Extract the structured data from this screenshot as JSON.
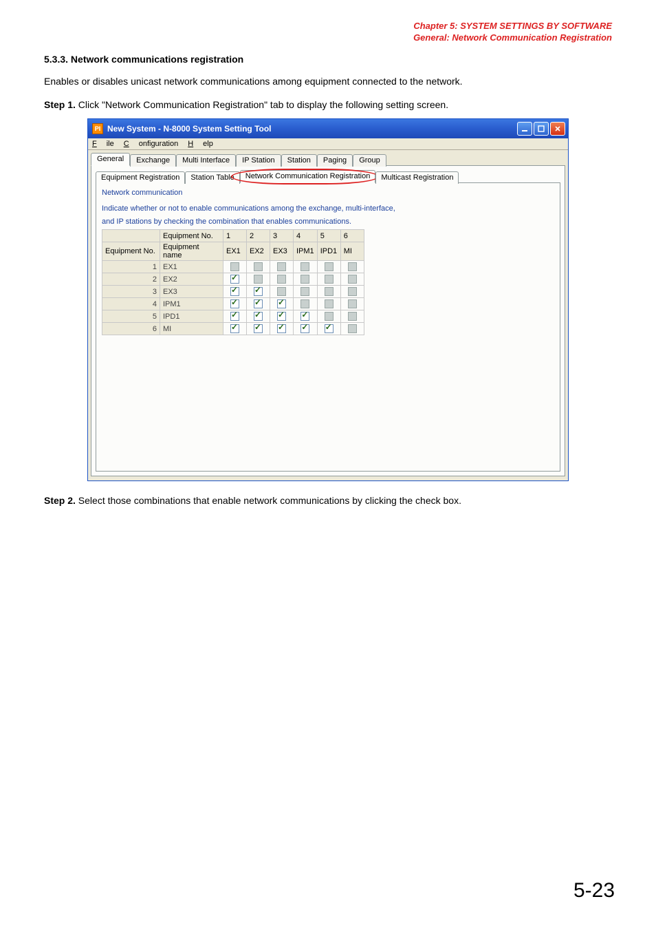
{
  "header": {
    "line1": "Chapter 5:  SYSTEM SETTINGS BY SOFTWARE",
    "line2": "General: Network Communication Registration"
  },
  "doc": {
    "section_title": "5.3.3. Network communications registration",
    "intro": "Enables or disables unicast network communications among equipment connected to the network.",
    "step1_label": "Step 1.",
    "step1_text": "Click \"Network Communication Registration\" tab to display the following setting screen.",
    "step2_label": "Step 2.",
    "step2_text": "Select those combinations that enable network communications by clicking the check box.",
    "page_number": "5-23"
  },
  "window": {
    "title": "New System - N-8000 System Setting Tool",
    "app_icon_text": "PI",
    "menubar": [
      {
        "label": "File",
        "ul": "F"
      },
      {
        "label": "Configuration",
        "ul": "C"
      },
      {
        "label": "Help",
        "ul": "H"
      }
    ],
    "outer_tabs": [
      "General",
      "Exchange",
      "Multi Interface",
      "IP Station",
      "Station",
      "Paging",
      "Group"
    ],
    "outer_active": "General",
    "inner_tabs": [
      "Equipment Registration",
      "Station Table",
      "Network Communication Registration",
      "Multicast Registration"
    ],
    "inner_active": "Network Communication Registration",
    "panel_label": "Network communication",
    "explain_line1": "Indicate whether or not to enable communications among the exchange, multi-interface,",
    "explain_line2": "and IP stations by checking the combination that enables communications."
  },
  "table": {
    "top_left_label": "Equipment No.",
    "row_header_no": "Equipment No.",
    "row_header_name": "Equipment name",
    "col_numbers": [
      "1",
      "2",
      "3",
      "4",
      "5",
      "6"
    ],
    "col_names": [
      "EX1",
      "EX2",
      "EX3",
      "IPM1",
      "IPD1",
      "MI"
    ],
    "rows": [
      {
        "no": "1",
        "name": "EX1",
        "cells": [
          {
            "state": "disabled"
          },
          {
            "state": "disabled"
          },
          {
            "state": "disabled"
          },
          {
            "state": "disabled"
          },
          {
            "state": "disabled"
          },
          {
            "state": "disabled"
          }
        ]
      },
      {
        "no": "2",
        "name": "EX2",
        "cells": [
          {
            "state": "checked"
          },
          {
            "state": "disabled"
          },
          {
            "state": "disabled"
          },
          {
            "state": "disabled"
          },
          {
            "state": "disabled"
          },
          {
            "state": "disabled"
          }
        ]
      },
      {
        "no": "3",
        "name": "EX3",
        "cells": [
          {
            "state": "checked"
          },
          {
            "state": "checked"
          },
          {
            "state": "disabled"
          },
          {
            "state": "disabled"
          },
          {
            "state": "disabled"
          },
          {
            "state": "disabled"
          }
        ]
      },
      {
        "no": "4",
        "name": "IPM1",
        "cells": [
          {
            "state": "checked"
          },
          {
            "state": "checked"
          },
          {
            "state": "checked"
          },
          {
            "state": "disabled"
          },
          {
            "state": "disabled"
          },
          {
            "state": "disabled"
          }
        ]
      },
      {
        "no": "5",
        "name": "IPD1",
        "cells": [
          {
            "state": "checked"
          },
          {
            "state": "checked"
          },
          {
            "state": "checked"
          },
          {
            "state": "checked"
          },
          {
            "state": "disabled"
          },
          {
            "state": "disabled"
          }
        ]
      },
      {
        "no": "6",
        "name": "MI",
        "cells": [
          {
            "state": "checked"
          },
          {
            "state": "checked"
          },
          {
            "state": "checked"
          },
          {
            "state": "checked"
          },
          {
            "state": "checked"
          },
          {
            "state": "disabled"
          }
        ]
      }
    ]
  },
  "colors": {
    "accent_red": "#d22",
    "link_blue": "#1b3f9c",
    "title_gradient_top": "#3b77e0",
    "title_gradient_bottom": "#1e49b8",
    "panel_bg": "#ece9d8"
  }
}
